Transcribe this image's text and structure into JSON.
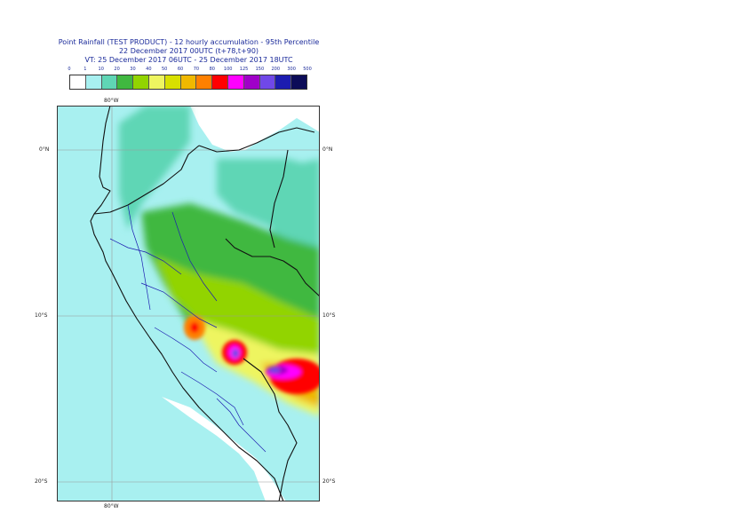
{
  "header": {
    "title_line1": "Point Rainfall (TEST PRODUCT) - 12 hourly accumulation - 95th Percentile",
    "title_line2": "22 December 2017 00UTC (t+78,t+90)",
    "title_line3": "VT: 25 December 2017 06UTC - 25 December 2017 18UTC"
  },
  "legend": {
    "ticks": [
      "0",
      "1",
      "10",
      "20",
      "30",
      "40",
      "50",
      "60",
      "70",
      "80",
      "100",
      "125",
      "150",
      "200",
      "300",
      "500"
    ],
    "colors": [
      "#ffffff",
      "#a8f0f0",
      "#5fd6b5",
      "#40b840",
      "#92d400",
      "#eef560",
      "#d8e000",
      "#f0b800",
      "#ff8000",
      "#ff0000",
      "#ff00ff",
      "#a000c8",
      "#7048e8",
      "#1c1cb0",
      "#0c0c58"
    ]
  },
  "map": {
    "lon_labels": [
      "80°W",
      "80°W"
    ],
    "lat_labels": {
      "left": [
        "0°N",
        "10°S",
        "20°S"
      ],
      "right": [
        "0°N",
        "10°S",
        "20°S"
      ]
    },
    "ocean_color": "#a8f0f0",
    "land_color": "#ffffff"
  }
}
